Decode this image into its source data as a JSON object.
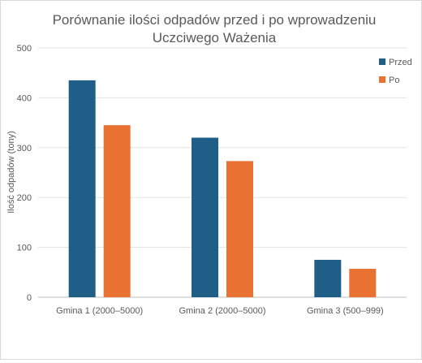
{
  "chart_data": {
    "type": "bar",
    "title_lines": [
      "Porównanie ilości odpadów przed i po wprowadzeniu",
      "Uczciwego Ważenia"
    ],
    "xlabel": "",
    "ylabel": "Ilość odpadów (tony)",
    "ylim": [
      0,
      500
    ],
    "yticks": [
      0,
      100,
      200,
      300,
      400,
      500
    ],
    "categories": [
      "Gmina 1 (2000–5000)",
      "Gmina 2 (2000–5000)",
      "Gmina 3 (500–999)"
    ],
    "series": [
      {
        "name": "Przed",
        "color": "#1f5f87",
        "values": [
          435,
          320,
          75
        ]
      },
      {
        "name": "Po",
        "color": "#e97132",
        "values": [
          345,
          273,
          57
        ]
      }
    ],
    "grid": true,
    "legend_position": "top-right"
  }
}
